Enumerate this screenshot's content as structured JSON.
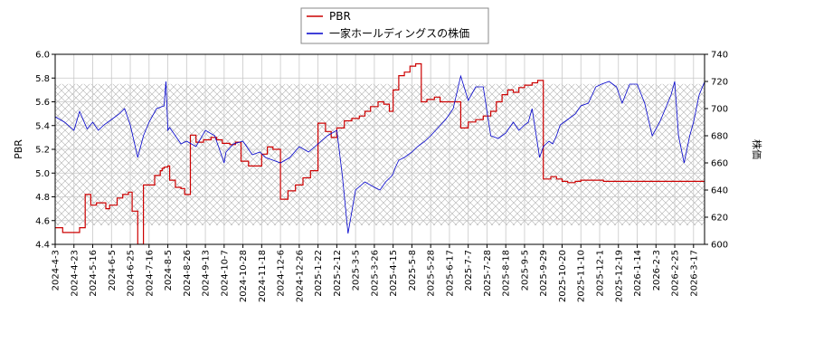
{
  "chart_data": {
    "type": "line",
    "legend": {
      "placement": "top-center",
      "items": [
        "PBR",
        "一家ホールディングスの株価"
      ]
    },
    "y_left": {
      "label": "PBR",
      "range": [
        4.4,
        6.0
      ],
      "ticks": [
        "4.4",
        "4.6",
        "4.8",
        "5.0",
        "5.2",
        "5.4",
        "5.6",
        "5.8",
        "6.0"
      ]
    },
    "y_right": {
      "label": "株価",
      "range": [
        600,
        740
      ],
      "ticks": [
        "600",
        "620",
        "640",
        "660",
        "680",
        "700",
        "720",
        "740"
      ]
    },
    "x": {
      "tick_labels": [
        "2024-4-3",
        "2024-4-23",
        "2024-5-16",
        "2024-6-5",
        "2024-6-25",
        "2024-7-16",
        "2024-8-5",
        "2024-8-26",
        "2024-9-13",
        "2024-10-7",
        "2024-10-28",
        "2024-11-18",
        "2024-12-6",
        "2024-12-26",
        "2025-1-22",
        "2025-2-12",
        "2025-3-5",
        "2025-3-26",
        "2025-4-15",
        "2025-5-8",
        "2025-5-28",
        "2025-6-17",
        "2025-7-7",
        "2025-7-28",
        "2025-8-18",
        "2025-9-5",
        "2025-9-29",
        "2025-10-20",
        "2025-11-10",
        "2025-12-1",
        "2025-12-19",
        "2026-1-14",
        "2026-2-3",
        "2026-2-25",
        "2026-3-17"
      ]
    },
    "grid": true,
    "hatched_band": {
      "pbr_range": [
        4.56,
        5.75
      ]
    },
    "colors": {
      "pbr": "#cc0000",
      "price": "#0000cc",
      "hatch": "#b0b0b0"
    },
    "series": [
      {
        "name": "PBR",
        "axis": "left",
        "tick_index": [
          0,
          0.4,
          0.7,
          1.3,
          1.6,
          1.9,
          2.1,
          2.2,
          2.7,
          2.9,
          3.3,
          3.6,
          3.9,
          4.1,
          4.4,
          4.7,
          5.0,
          5.3,
          5.6,
          5.7,
          5.8,
          6.0,
          6.1,
          6.4,
          6.7,
          6.9,
          7.2,
          7.5,
          7.9,
          8.3,
          8.6,
          8.9,
          9.3,
          9.6,
          9.9,
          10.3,
          10.7,
          11.0,
          11.3,
          11.6,
          12.0,
          12.4,
          12.8,
          13.2,
          13.6,
          14.0,
          14.4,
          14.7,
          15.0,
          15.4,
          15.8,
          16.2,
          16.5,
          16.8,
          17.2,
          17.5,
          17.8,
          18.0,
          18.3,
          18.6,
          18.9,
          19.2,
          19.5,
          19.8,
          20.2,
          20.5,
          20.8,
          21.2,
          21.6,
          22.0,
          22.4,
          22.8,
          23.2,
          23.5,
          23.8,
          24.1,
          24.4,
          24.7,
          25.0,
          25.4,
          25.7,
          26.0,
          26.4,
          26.7,
          27.0,
          27.3,
          27.7,
          28.0,
          28.3,
          28.6,
          28.9,
          29.2,
          29.5,
          29.8,
          30.2,
          30.5,
          30.9,
          31.2,
          31.6,
          31.9,
          32.3,
          32.6,
          32.9,
          33.1,
          33.4,
          33.7,
          34.0,
          34.3,
          35.0
        ],
        "values": [
          4.54,
          4.5,
          4.5,
          4.54,
          4.82,
          4.73,
          4.73,
          4.75,
          4.7,
          4.73,
          4.79,
          4.82,
          4.84,
          4.68,
          4.4,
          4.9,
          4.9,
          4.98,
          5.02,
          5.04,
          5.05,
          5.06,
          4.94,
          4.88,
          4.87,
          4.82,
          5.32,
          5.26,
          5.28,
          5.3,
          5.28,
          5.25,
          5.24,
          5.26,
          5.1,
          5.06,
          5.06,
          5.16,
          5.22,
          5.2,
          4.78,
          4.85,
          4.9,
          4.96,
          5.02,
          5.42,
          5.35,
          5.3,
          5.38,
          5.44,
          5.46,
          5.48,
          5.52,
          5.56,
          5.6,
          5.58,
          5.52,
          5.7,
          5.82,
          5.85,
          5.9,
          5.92,
          5.6,
          5.62,
          5.64,
          5.6,
          5.6,
          5.6,
          5.38,
          5.43,
          5.45,
          5.48,
          5.52,
          5.6,
          5.66,
          5.7,
          5.68,
          5.72,
          5.74,
          5.76,
          5.78,
          4.95,
          4.97,
          4.95,
          4.93,
          4.92,
          4.93,
          4.94,
          4.94,
          4.94,
          4.94,
          4.93,
          4.93,
          4.93,
          4.93,
          4.93,
          4.93,
          4.93,
          4.93,
          4.93,
          4.93,
          4.93,
          4.93,
          4.93,
          4.93,
          4.93,
          4.93,
          4.93,
          4.93
        ]
      },
      {
        "name": "一家ホールディングスの株価",
        "axis": "right",
        "tick_index": [
          0,
          0.5,
          1.0,
          1.3,
          1.7,
          2.0,
          2.3,
          2.6,
          3.0,
          3.4,
          3.7,
          4.0,
          4.4,
          4.7,
          5.0,
          5.4,
          5.8,
          5.9,
          6.0,
          6.1,
          6.3,
          6.7,
          7.0,
          7.5,
          8.0,
          8.5,
          8.8,
          9.0,
          9.1,
          9.5,
          10.0,
          10.3,
          10.5,
          10.9,
          11.2,
          11.6,
          12.0,
          12.5,
          13.0,
          13.5,
          14.0,
          14.5,
          15.0,
          15.3,
          15.6,
          16.0,
          16.5,
          17.0,
          17.3,
          17.6,
          17.9,
          18.0,
          18.1,
          18.3,
          18.6,
          19.0,
          19.3,
          19.7,
          20.0,
          20.4,
          20.8,
          21.2,
          21.6,
          22.0,
          22.4,
          22.8,
          23.2,
          23.6,
          24.0,
          24.4,
          24.7,
          25.0,
          25.2,
          25.4,
          25.8,
          26.0,
          26.3,
          26.5,
          26.7,
          26.9,
          27.3,
          27.7,
          28.0,
          28.4,
          28.8,
          29.1,
          29.5,
          29.9,
          30.2,
          30.6,
          31.0,
          31.4,
          31.8,
          32.2,
          32.5,
          32.8,
          33.0,
          33.2,
          33.5,
          33.8,
          34.0,
          34.3,
          34.6,
          35.0
        ],
        "values": [
          694,
          690,
          684,
          698,
          685,
          690,
          684,
          688,
          692,
          696,
          700,
          688,
          664,
          680,
          690,
          700,
          702,
          720,
          684,
          686,
          682,
          674,
          676,
          672,
          684,
          680,
          668,
          660,
          668,
          674,
          676,
          670,
          666,
          668,
          664,
          662,
          660,
          664,
          672,
          668,
          674,
          680,
          684,
          650,
          608,
          640,
          646,
          642,
          640,
          646,
          650,
          652,
          656,
          662,
          664,
          668,
          672,
          676,
          680,
          686,
          692,
          700,
          724,
          706,
          716,
          716,
          680,
          678,
          682,
          690,
          684,
          688,
          690,
          700,
          664,
          672,
          676,
          674,
          680,
          688,
          692,
          696,
          702,
          704,
          716,
          718,
          720,
          716,
          704,
          718,
          718,
          704,
          680,
          690,
          700,
          710,
          720,
          680,
          660,
          680,
          690,
          710,
          720,
          700
        ]
      }
    ]
  }
}
